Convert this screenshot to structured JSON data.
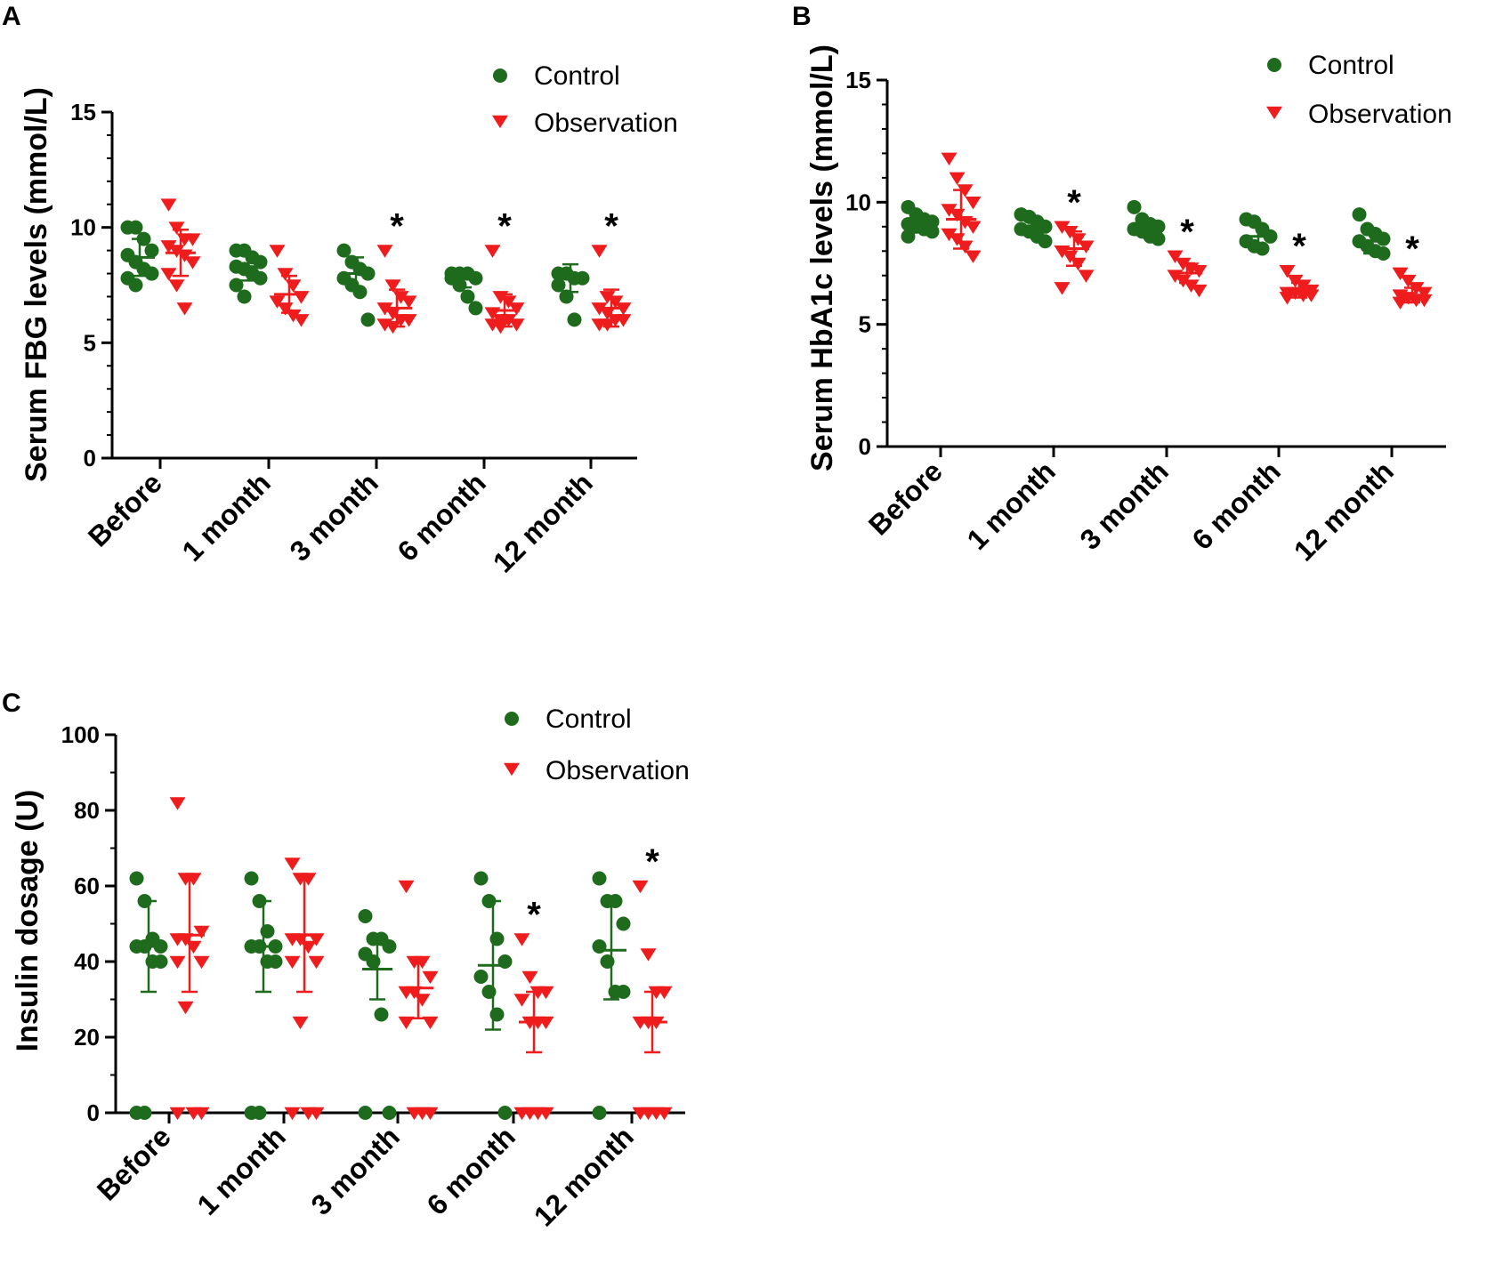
{
  "colors": {
    "control": "#1e6b1e",
    "observation": "#ee1c1c",
    "axis": "#000000"
  },
  "chart_data": [
    {
      "panel": "A",
      "type": "scatter",
      "title": "",
      "ylabel": "Serum FBG levels (mmol/L)",
      "xlabel": "",
      "ylim": [
        0,
        15
      ],
      "yticks": [
        0,
        5,
        10,
        15
      ],
      "categories": [
        "Before",
        "1 month",
        "3 month",
        "6 month",
        "12 month"
      ],
      "legend": [
        "Control",
        "Observation"
      ],
      "significance": [
        "",
        "",
        "*",
        "*",
        "*"
      ],
      "series": [
        {
          "name": "Control",
          "marker": "circle",
          "mean": [
            8.7,
            8.3,
            8.0,
            7.8,
            7.8
          ],
          "sd": [
            0.8,
            0.6,
            0.7,
            0.4,
            0.6
          ],
          "points": [
            [
              10,
              10,
              9.5,
              9,
              8.8,
              8.5,
              8.2,
              8,
              7.8,
              7.5
            ],
            [
              9,
              9,
              8.7,
              8.5,
              8.3,
              8.2,
              8,
              7.8,
              7.5,
              7
            ],
            [
              9,
              8.5,
              8.2,
              8,
              7.8,
              7.5,
              7.2,
              6
            ],
            [
              8,
              8,
              8,
              7.8,
              7.8,
              7.5,
              7,
              6.5
            ],
            [
              8,
              8,
              7.8,
              7.8,
              7.5,
              7,
              6
            ]
          ]
        },
        {
          "name": "Observation",
          "marker": "triangle",
          "mean": [
            8.9,
            7.1,
            6.5,
            6.4,
            6.5
          ],
          "sd": [
            1.0,
            0.8,
            0.8,
            0.7,
            0.8
          ],
          "points": [
            [
              11,
              10,
              9.5,
              9.5,
              9.2,
              9,
              8.8,
              8.5,
              8,
              7.5,
              6.5
            ],
            [
              9,
              8,
              7.5,
              7,
              6.8,
              6.5,
              6.2,
              6
            ],
            [
              9,
              7.5,
              7,
              6.8,
              6.5,
              6.3,
              6,
              6,
              5.8,
              5.7
            ],
            [
              9,
              7,
              6.8,
              6.5,
              6.3,
              6,
              6,
              5.8,
              5.8,
              5.7
            ],
            [
              9,
              7,
              6.8,
              6.5,
              6.5,
              6.3,
              6,
              6,
              5.8,
              5.8
            ]
          ]
        }
      ]
    },
    {
      "panel": "B",
      "type": "scatter",
      "title": "",
      "ylabel": "Serum HbA1c levels (mmol/L)",
      "xlabel": "",
      "ylim": [
        0,
        15
      ],
      "yticks": [
        0,
        5,
        10,
        15
      ],
      "categories": [
        "Before",
        "1 month",
        "3 month",
        "6 month",
        "12 month"
      ],
      "legend": [
        "Control",
        "Observation"
      ],
      "significance": [
        "",
        "*",
        "*",
        "*",
        "*"
      ],
      "series": [
        {
          "name": "Control",
          "marker": "circle",
          "mean": [
            9.1,
            8.9,
            8.9,
            8.6,
            8.4
          ],
          "sd": [
            0.3,
            0.3,
            0.3,
            0.4,
            0.5
          ],
          "points": [
            [
              9.8,
              9.5,
              9.3,
              9.2,
              9.1,
              9,
              8.9,
              8.8,
              8.6
            ],
            [
              9.5,
              9.4,
              9.2,
              9,
              8.9,
              8.8,
              8.6,
              8.4
            ],
            [
              9.8,
              9.3,
              9.1,
              9,
              8.9,
              8.8,
              8.6,
              8.5
            ],
            [
              9.3,
              9.2,
              8.9,
              8.6,
              8.4,
              8.2,
              8.1
            ],
            [
              9.5,
              8.9,
              8.7,
              8.5,
              8.4,
              8.2,
              8,
              7.9
            ]
          ]
        },
        {
          "name": "Observation",
          "marker": "triangle",
          "mean": [
            9.3,
            8.1,
            7.1,
            6.4,
            6.2
          ],
          "sd": [
            1.2,
            0.7,
            0.4,
            0.3,
            0.3
          ],
          "points": [
            [
              11.8,
              11,
              10.5,
              10,
              9.7,
              9.5,
              9.2,
              9,
              8.7,
              8.5,
              8.2,
              7.8
            ],
            [
              9,
              8.8,
              8.5,
              8.2,
              8,
              7.8,
              7.5,
              7,
              6.5
            ],
            [
              7.8,
              7.5,
              7.3,
              7.2,
              7,
              6.8,
              6.6,
              6.4
            ],
            [
              7.2,
              6.8,
              6.6,
              6.4,
              6.3,
              6.3,
              6.2,
              6.2,
              6.1
            ],
            [
              7.1,
              6.8,
              6.5,
              6.3,
              6.2,
              6.1,
              6,
              6,
              5.9
            ]
          ]
        }
      ]
    },
    {
      "panel": "C",
      "type": "scatter",
      "title": "",
      "ylabel": "Insulin dosage (U)",
      "xlabel": "",
      "ylim": [
        0,
        100
      ],
      "yticks": [
        0,
        20,
        40,
        60,
        80,
        100
      ],
      "categories": [
        "Before",
        "1 month",
        "3 month",
        "6 month",
        "12 month"
      ],
      "legend": [
        "Control",
        "Observation"
      ],
      "significance": [
        "",
        "",
        "",
        "*",
        "*"
      ],
      "series": [
        {
          "name": "Control",
          "marker": "circle",
          "mean": [
            44,
            44,
            38,
            39,
            43
          ],
          "sd": [
            12,
            12,
            8,
            17,
            13
          ],
          "points": [
            [
              62,
              56,
              46,
              44,
              44,
              44,
              40,
              40,
              0,
              0
            ],
            [
              62,
              56,
              48,
              44,
              44,
              44,
              40,
              40,
              0,
              0
            ],
            [
              52,
              46,
              46,
              44,
              42,
              40,
              26,
              0,
              0
            ],
            [
              62,
              56,
              46,
              40,
              36,
              32,
              26,
              0
            ],
            [
              62,
              56,
              56,
              50,
              44,
              40,
              32,
              32,
              0
            ]
          ]
        },
        {
          "name": "Observation",
          "marker": "triangle",
          "mean": [
            47,
            47,
            33,
            24,
            24
          ],
          "sd": [
            15,
            15,
            8,
            8,
            8
          ],
          "points": [
            [
              82,
              62,
              62,
              48,
              46,
              46,
              44,
              40,
              40,
              28,
              0,
              0,
              0
            ],
            [
              66,
              62,
              62,
              46,
              46,
              46,
              44,
              40,
              40,
              24,
              0,
              0,
              0
            ],
            [
              60,
              40,
              40,
              36,
              32,
              32,
              30,
              24,
              24,
              0,
              0,
              0
            ],
            [
              46,
              36,
              32,
              32,
              30,
              24,
              24,
              24,
              0,
              0,
              0,
              0
            ],
            [
              60,
              42,
              32,
              32,
              24,
              24,
              24,
              0,
              0,
              0,
              0
            ]
          ]
        }
      ]
    }
  ]
}
